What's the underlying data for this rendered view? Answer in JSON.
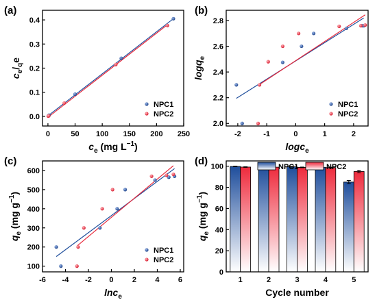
{
  "colors": {
    "npc1": "#1f4e9c",
    "npc2": "#e8293b"
  },
  "chart_data": [
    {
      "panel_label": "(a)",
      "type": "scatter",
      "x_label_html": [
        "c",
        "e",
        " (mg L",
        "−1",
        ")"
      ],
      "y_label_html": [
        "c",
        "e",
        "/",
        "q",
        "e"
      ],
      "xlim": [
        -10,
        250
      ],
      "ylim": [
        -0.04,
        0.44
      ],
      "xticks": [
        0,
        50,
        100,
        150,
        200,
        250
      ],
      "yticks": [
        0.0,
        0.1,
        0.2,
        0.3,
        0.4
      ],
      "xtick_labels": [
        "0",
        "50",
        "100",
        "150",
        "200",
        "250"
      ],
      "ytick_labels": [
        "0.0",
        "0.1",
        "0.2",
        "0.3",
        "0.4"
      ],
      "legend_position": "bottom-right",
      "series": [
        {
          "name": "NPC1",
          "x": [
            1,
            2,
            50,
            135,
            231
          ],
          "y": [
            0.003,
            0.005,
            0.092,
            0.241,
            0.405
          ],
          "fit": [
            [
              0,
              0.002
            ],
            [
              231,
              0.405
            ]
          ]
        },
        {
          "name": "NPC2",
          "x": [
            0.5,
            1.5,
            30,
            125,
            220
          ],
          "y": [
            0.001,
            0.002,
            0.055,
            0.215,
            0.377
          ],
          "fit": [
            [
              0,
              -0.004
            ],
            [
              220,
              0.38
            ]
          ]
        }
      ]
    },
    {
      "panel_label": "(b)",
      "type": "scatter",
      "x_label_html": [
        "logc",
        "e"
      ],
      "y_label_html": [
        "logq",
        "e"
      ],
      "xlim": [
        -2.4,
        2.5
      ],
      "ylim": [
        1.98,
        2.88
      ],
      "xticks": [
        -2,
        -1,
        0,
        1,
        2
      ],
      "yticks": [
        2.0,
        2.2,
        2.4,
        2.6,
        2.8
      ],
      "xtick_labels": [
        "-2",
        "-1",
        "0",
        "1",
        "2"
      ],
      "ytick_labels": [
        "2.0",
        "2.2",
        "2.4",
        "2.6",
        "2.8"
      ],
      "legend_position": "bottom-right",
      "series": [
        {
          "name": "NPC1",
          "x": [
            -2.05,
            -1.85,
            -0.45,
            0.2,
            0.62,
            1.75,
            2.3,
            2.35
          ],
          "y": [
            2.3,
            2.0,
            2.475,
            2.6,
            2.7,
            2.74,
            2.76,
            2.76
          ],
          "fit": [
            [
              -2.05,
              2.195
            ],
            [
              2.35,
              2.82
            ]
          ]
        },
        {
          "name": "NPC2",
          "x": [
            -1.3,
            -1.25,
            -0.95,
            -0.45,
            0.1,
            1.5,
            2.25,
            2.4
          ],
          "y": [
            2.0,
            2.3,
            2.48,
            2.6,
            2.7,
            2.755,
            2.76,
            2.765
          ],
          "fit": [
            [
              -1.3,
              2.295
            ],
            [
              2.4,
              2.845
            ]
          ]
        }
      ]
    },
    {
      "panel_label": "(c)",
      "type": "scatter",
      "x_label_html": [
        "lnc",
        "e"
      ],
      "y_label_html": [
        "q",
        "e",
        " (mg g",
        "−1",
        ")"
      ],
      "xlim": [
        -6,
        6.3
      ],
      "ylim": [
        70,
        650
      ],
      "xticks": [
        -6,
        -4,
        -2,
        0,
        2,
        4,
        6
      ],
      "yticks": [
        100,
        200,
        300,
        400,
        500,
        600
      ],
      "xtick_labels": [
        "-6",
        "-4",
        "-2",
        "0",
        "2",
        "4",
        "6"
      ],
      "ytick_labels": [
        "100",
        "200",
        "300",
        "400",
        "500",
        "600"
      ],
      "legend_position": "bottom-right",
      "series": [
        {
          "name": "NPC1",
          "x": [
            -4.8,
            -4.4,
            -1.0,
            0.5,
            1.2,
            3.8,
            5.0,
            5.5
          ],
          "y": [
            200,
            100,
            300,
            400,
            500,
            550,
            565,
            570
          ],
          "fit": [
            [
              -4.8,
              150
            ],
            [
              5.5,
              610
            ]
          ]
        },
        {
          "name": "NPC2",
          "x": [
            -3.0,
            -2.9,
            -2.4,
            -0.8,
            0.1,
            3.5,
            4.8,
            5.4
          ],
          "y": [
            100,
            200,
            300,
            400,
            500,
            570,
            575,
            580
          ],
          "fit": [
            [
              -3.0,
              205
            ],
            [
              5.4,
              625
            ]
          ]
        }
      ]
    },
    {
      "panel_label": "(d)",
      "type": "bar",
      "x_label_html": [
        "Cycle number"
      ],
      "y_label_html": [
        "q",
        "e",
        " (mg g",
        "−1",
        ")"
      ],
      "categories": [
        "1",
        "2",
        "3",
        "4",
        "5"
      ],
      "ylim": [
        0,
        105
      ],
      "yticks": [
        0,
        20,
        40,
        60,
        80,
        100
      ],
      "ytick_labels": [
        "0",
        "20",
        "40",
        "60",
        "80",
        "100"
      ],
      "legend_position": "top",
      "series": [
        {
          "name": "NPC1",
          "values": [
            99.8,
            99.7,
            99.5,
            99.0,
            85.0
          ],
          "errors": [
            0.3,
            0.3,
            0.3,
            0.4,
            1.5
          ]
        },
        {
          "name": "NPC2",
          "values": [
            99.2,
            99.1,
            98.9,
            98.7,
            95.0
          ],
          "errors": [
            0.3,
            0.3,
            0.3,
            0.4,
            1.2
          ]
        }
      ]
    }
  ]
}
